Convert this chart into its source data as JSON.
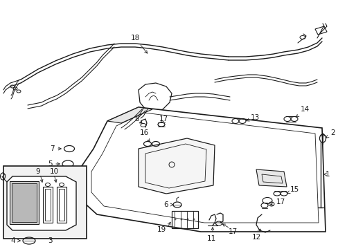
{
  "background_color": "#ffffff",
  "line_color": "#1a1a1a",
  "figure_width": 4.89,
  "figure_height": 3.6,
  "dpi": 100,
  "label_fontsize": 7.5
}
